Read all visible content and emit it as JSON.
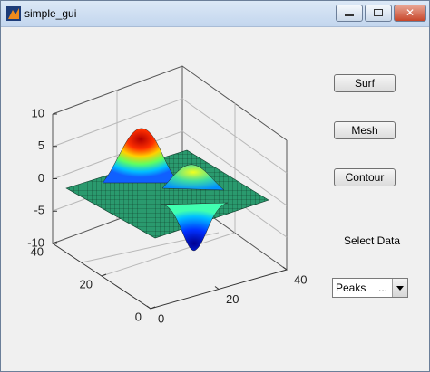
{
  "window": {
    "title": "simple_gui"
  },
  "buttons": [
    "Surf",
    "Mesh",
    "Contour"
  ],
  "label": "Select Data",
  "popup": {
    "value": "Peaks",
    "more": "..."
  },
  "axes": {
    "z_ticks": [
      10,
      5,
      0,
      -5,
      -10
    ],
    "y_ticks": [
      40,
      20,
      0
    ],
    "x_ticks": [
      0,
      20,
      40
    ]
  }
}
